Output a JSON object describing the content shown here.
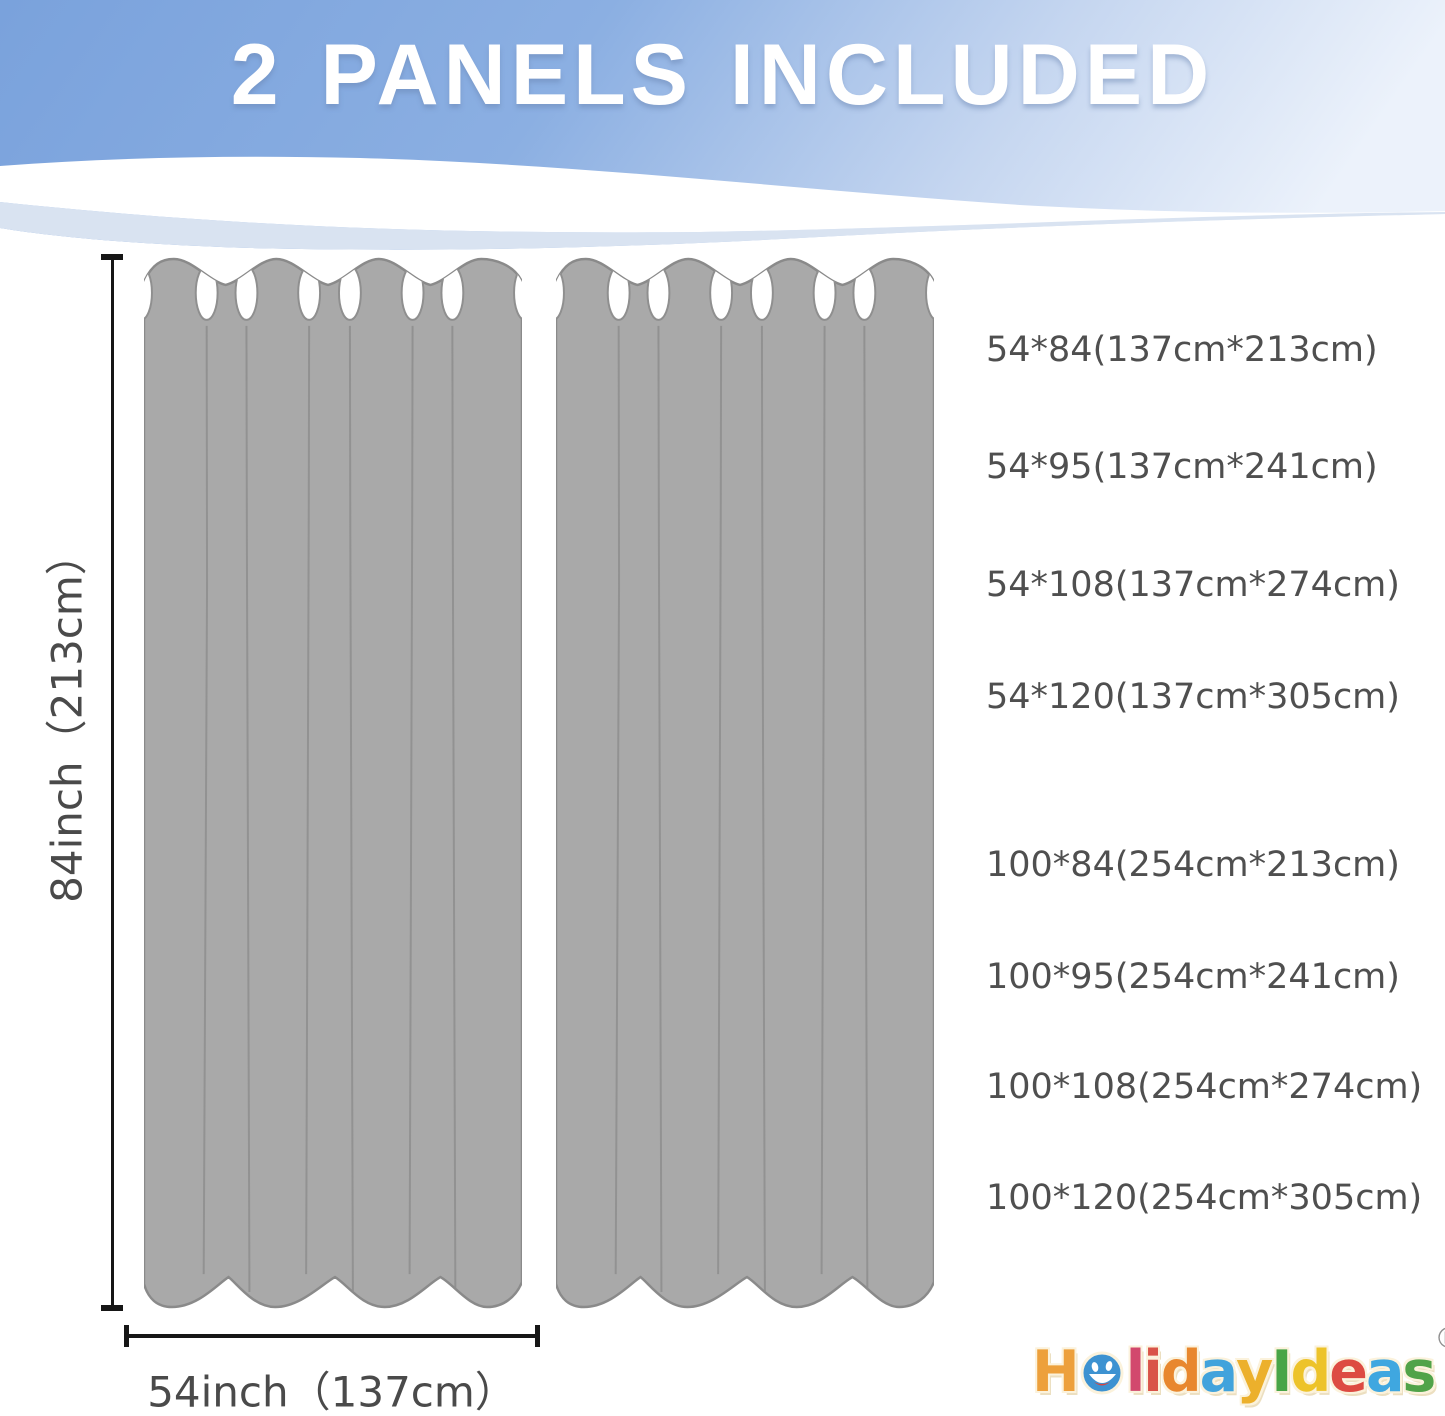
{
  "banner": {
    "title": "2 PANELS INCLUDED",
    "bg_color_left": "#7aa2dc",
    "bg_color_right": "#ecf2fb",
    "title_color": "#ffffff"
  },
  "diagram": {
    "panel_count": 2,
    "curtain_fill_color": "#a9a9a9",
    "curtain_outline_color": "#8a8a8a",
    "height_label": "84inch（213cm）",
    "width_label": "54inch（137cm）"
  },
  "sizes": [
    "54*84(137cm*213cm)",
    "54*95(137cm*241cm)",
    "54*108(137cm*274cm)",
    "54*120(137cm*305cm)",
    "100*84(254cm*213cm)",
    "100*95(254cm*241cm)",
    "100*108(254cm*274cm)",
    "100*120(254cm*305cm)"
  ],
  "logo": {
    "name": "HolidayIdeas",
    "registered_mark": "®",
    "letters": [
      {
        "ch": "H",
        "color": "#eda03c"
      },
      {
        "ch": "o",
        "color": "#3d92d1",
        "smiley": true
      },
      {
        "ch": "l",
        "color": "#d2486d"
      },
      {
        "ch": "i",
        "color": "#d95348"
      },
      {
        "ch": "d",
        "color": "#e8872e"
      },
      {
        "ch": "a",
        "color": "#42a3dc"
      },
      {
        "ch": "y",
        "color": "#ecb02c"
      },
      {
        "ch": "I",
        "color": "#49a547"
      },
      {
        "ch": "d",
        "color": "#edc32a"
      },
      {
        "ch": "e",
        "color": "#dd4b42"
      },
      {
        "ch": "a",
        "color": "#3fa7e0"
      },
      {
        "ch": "s",
        "color": "#51a349"
      }
    ]
  }
}
